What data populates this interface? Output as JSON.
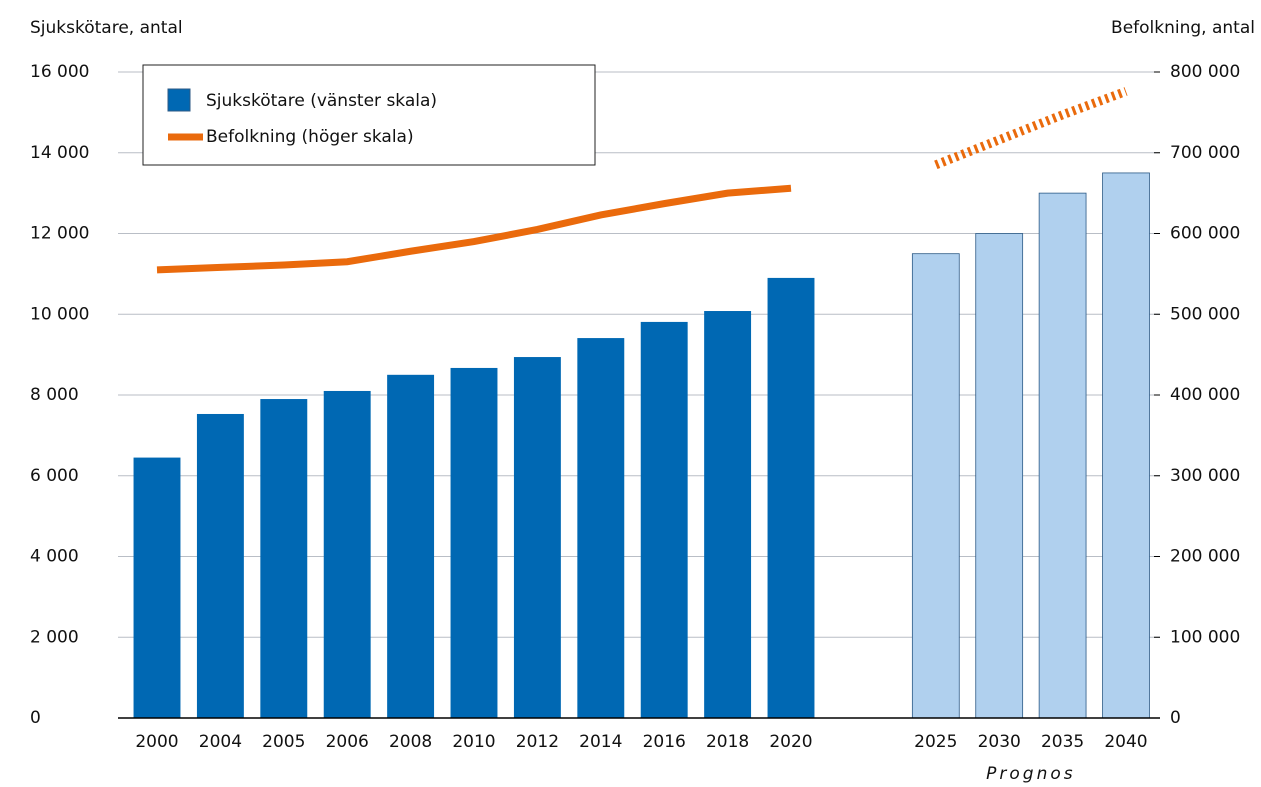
{
  "chart_data": {
    "type": "bar_line",
    "y_axis_label": "Sjukskötare, antal",
    "y2_axis_label": "Befolkning, antal",
    "categories": [
      "2000",
      "2004",
      "2005",
      "2006",
      "2008",
      "2010",
      "2012",
      "2014",
      "2016",
      "2018",
      "2020",
      null,
      "2025",
      "2030",
      "2035",
      "2040"
    ],
    "forecast_label": "Prognos",
    "series": [
      {
        "name": "Sjukskötare (vänster skala)",
        "type": "bar",
        "color": "#0068b3",
        "colors": [
          "#0068b3",
          "#0068b3",
          "#0068b3",
          "#0068b3",
          "#0068b3",
          "#0068b3",
          "#0068b3",
          "#0068b3",
          "#0068b3",
          "#0068b3",
          "#0068b3",
          null,
          "#b0d0ee",
          "#b0d0ee",
          "#b0d0ee",
          "#b0d0ee"
        ],
        "values": [
          6450,
          7530,
          7900,
          8100,
          8500,
          8670,
          8940,
          9410,
          9810,
          10080,
          10900,
          null,
          11500,
          12000,
          13000,
          13500
        ]
      },
      {
        "name": "Befolkning (höger skala)",
        "type": "line",
        "axis": "y2",
        "color": "#ea6a0c",
        "styles": [
          "solid",
          "solid",
          "solid",
          "solid",
          "solid",
          "solid",
          "solid",
          "solid",
          "solid",
          "solid",
          "solid",
          null,
          "dotted",
          "dotted",
          "dotted",
          "dotted"
        ],
        "values": [
          555000,
          558000,
          561000,
          565000,
          578000,
          590000,
          605000,
          623000,
          637000,
          650000,
          656000,
          null,
          685000,
          716000,
          747000,
          776000
        ]
      }
    ],
    "ylim": [
      0,
      16000
    ],
    "yticks": [
      0,
      {
        "value": 2000,
        "label": "2 000"
      },
      {
        "value": 4000,
        "label": "4 000"
      },
      {
        "value": 6000,
        "label": "6 000"
      },
      {
        "value": 8000,
        "label": "8 000"
      },
      {
        "value": 10000,
        "label": "10 000"
      },
      {
        "value": 12000,
        "label": "12 000"
      },
      {
        "value": 14000,
        "label": "14 000"
      },
      {
        "value": 16000,
        "label": "16 000"
      }
    ],
    "y2lim": [
      0,
      800000
    ],
    "y2ticks": [
      0,
      {
        "value": 100000,
        "label": "100 000"
      },
      {
        "value": 200000,
        "label": "200 000"
      },
      {
        "value": 300000,
        "label": "300 000"
      },
      {
        "value": 400000,
        "label": "400 000"
      },
      {
        "value": 500000,
        "label": "500 000"
      },
      {
        "value": 600000,
        "label": "600 000"
      },
      {
        "value": 700000,
        "label": "700 000"
      },
      {
        "value": 800000,
        "label": "800 000"
      }
    ],
    "grid": true,
    "legend": "top-left"
  }
}
